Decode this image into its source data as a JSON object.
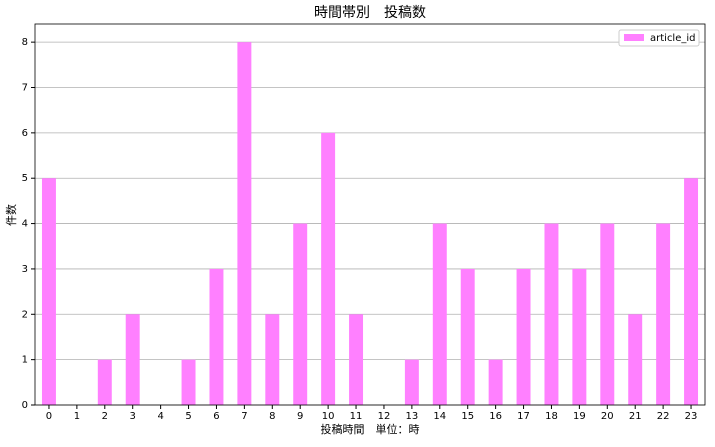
{
  "chart_data": {
    "type": "bar",
    "title": "時間帯別　投稿数",
    "xlabel": "投稿時間　単位：時",
    "ylabel": "件数",
    "categories": [
      "0",
      "1",
      "2",
      "3",
      "4",
      "5",
      "6",
      "7",
      "8",
      "9",
      "10",
      "11",
      "12",
      "13",
      "14",
      "15",
      "16",
      "17",
      "18",
      "19",
      "20",
      "21",
      "22",
      "23"
    ],
    "series": [
      {
        "name": "article_id",
        "color": "#ff80ff",
        "values": [
          5,
          0,
          1,
          2,
          0,
          1,
          3,
          8,
          2,
          4,
          6,
          2,
          0,
          1,
          4,
          3,
          1,
          3,
          4,
          3,
          4,
          2,
          4,
          5
        ]
      }
    ],
    "ylim": [
      0,
      8.4
    ],
    "yticks": [
      0,
      1,
      2,
      3,
      4,
      5,
      6,
      7,
      8
    ],
    "grid": true,
    "legend": "upper right"
  }
}
